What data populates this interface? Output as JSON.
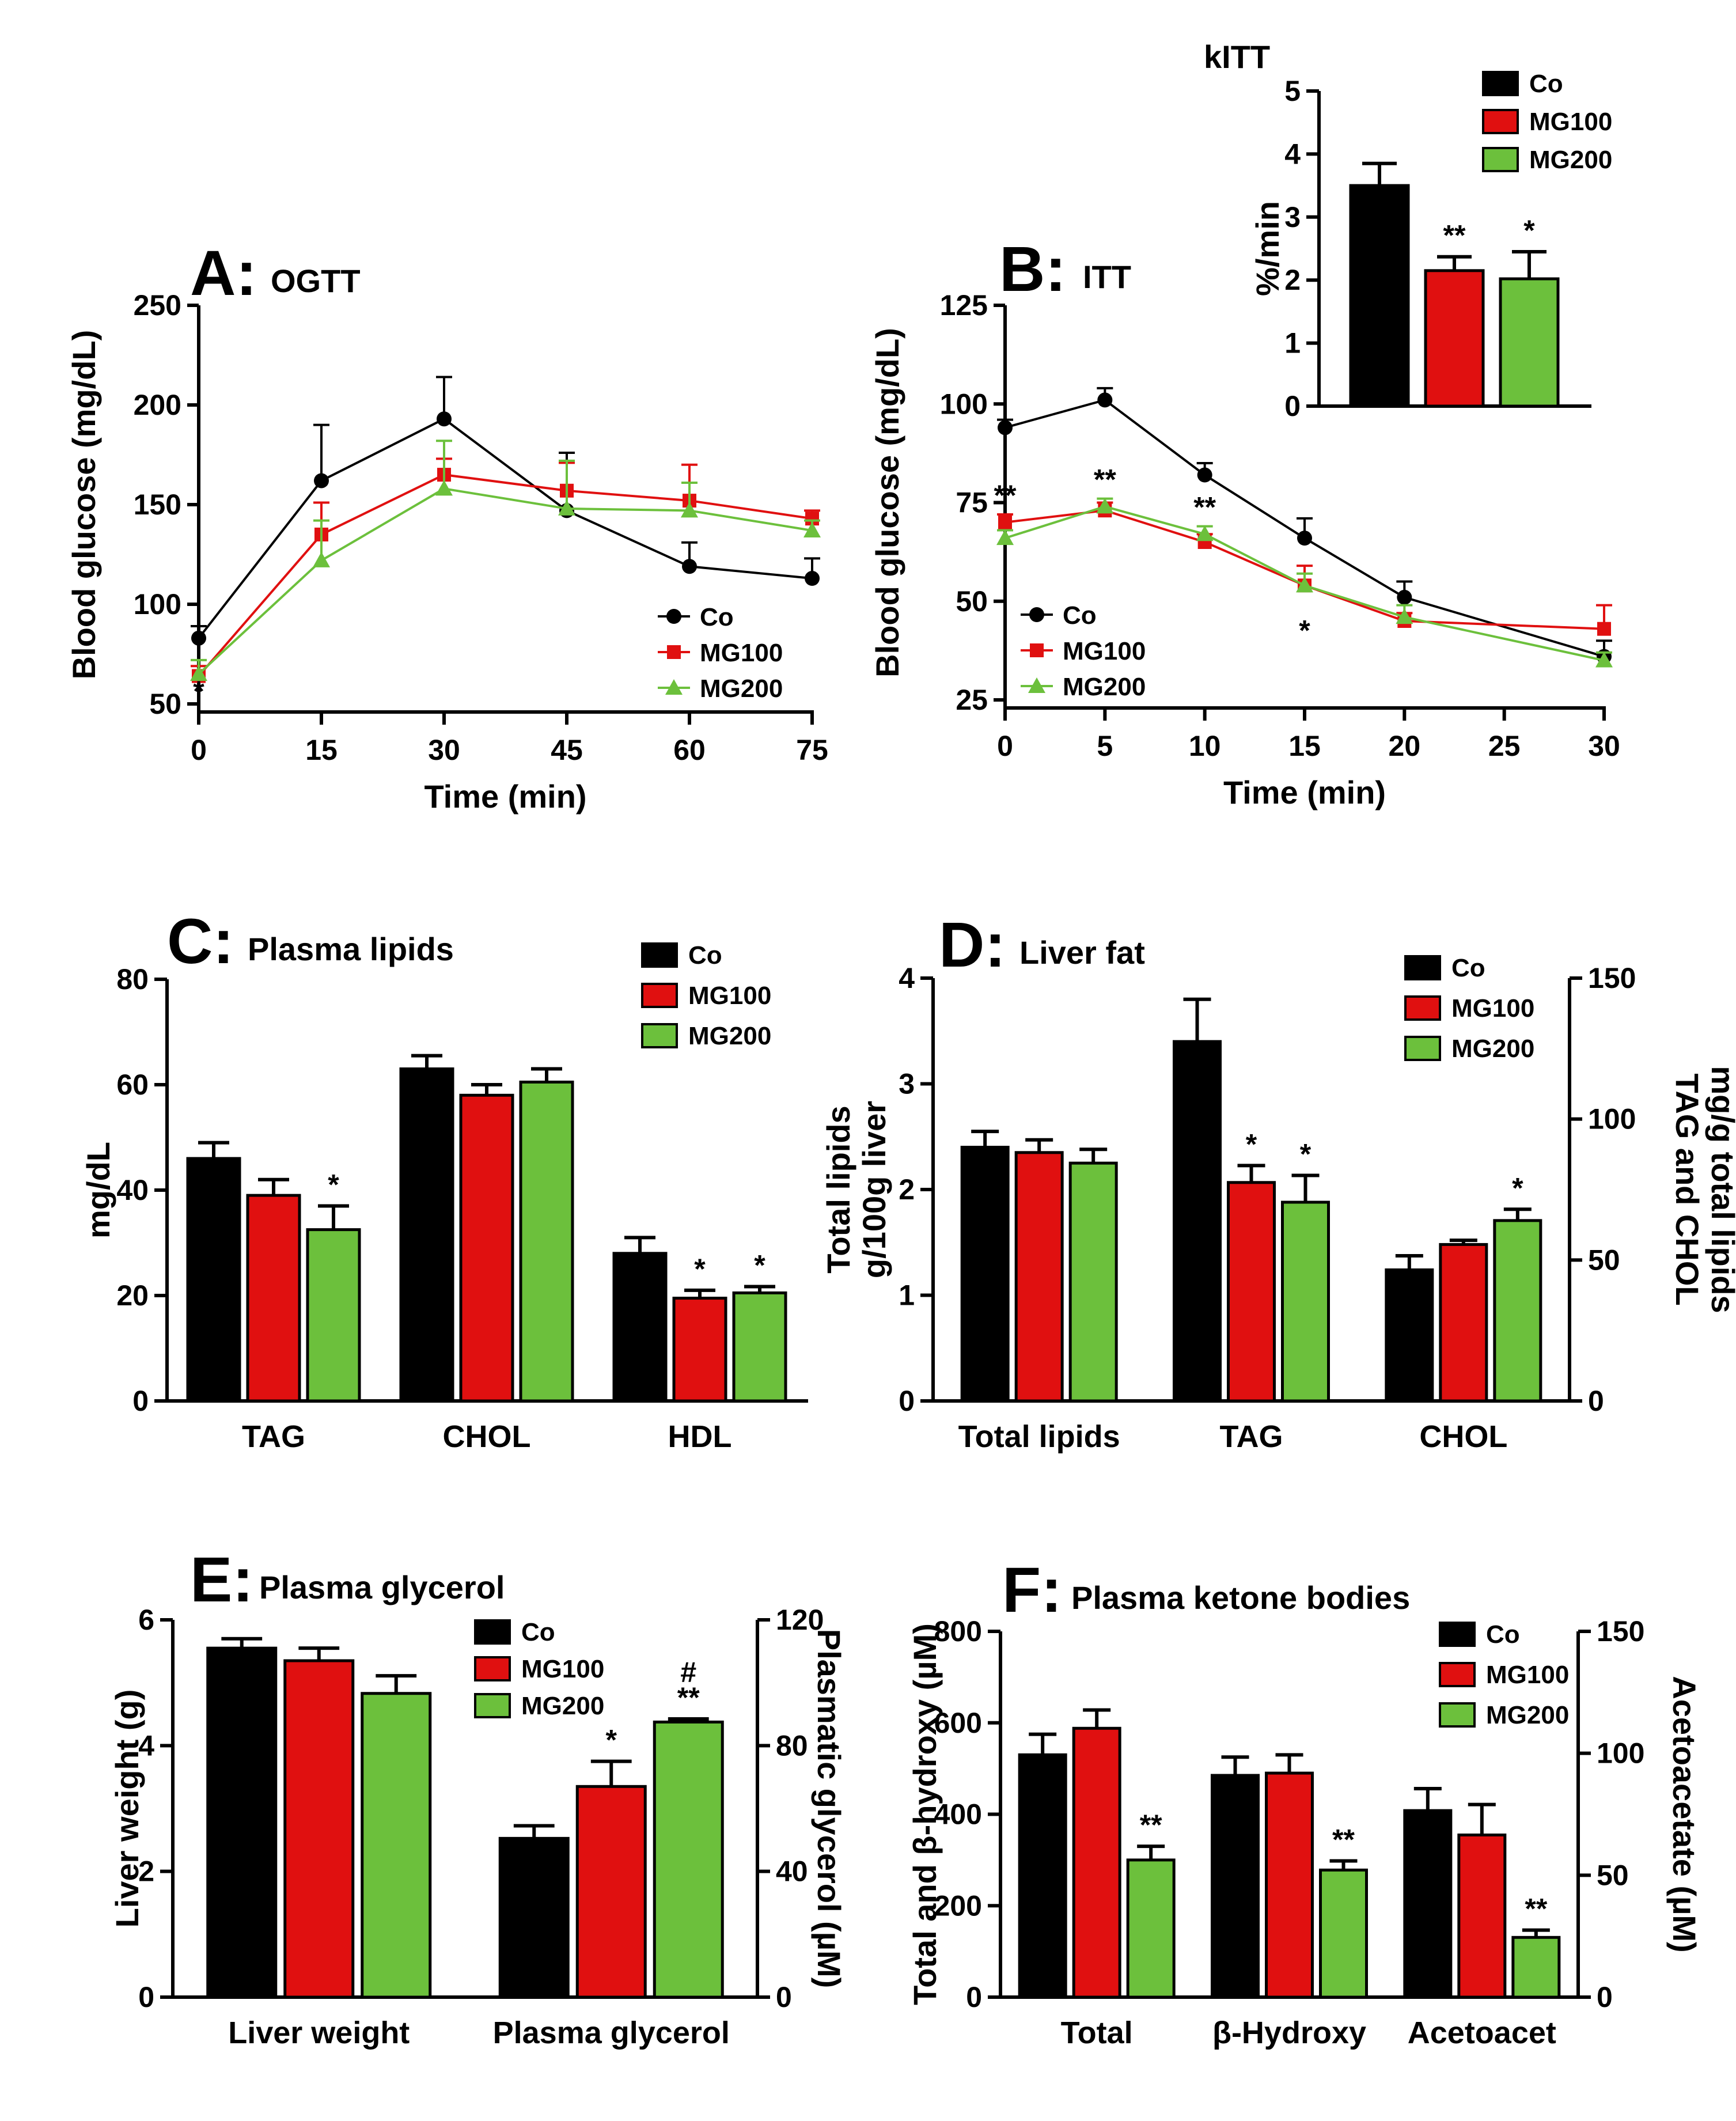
{
  "colors": {
    "co": "#000000",
    "mg100": "#e01010",
    "mg200": "#6cc03c"
  },
  "chart_data": [
    {
      "id": "A",
      "type": "line",
      "letter": "A:",
      "title": "OGTT",
      "xlabel": "Time (min)",
      "ylabel": "Blood glucose (mg/dL)",
      "x": [
        0,
        15,
        30,
        45,
        60,
        75
      ],
      "xlim": [
        0,
        75
      ],
      "ylim": [
        50,
        250
      ],
      "xticks": [
        "0",
        "15",
        "30",
        "45",
        "60",
        "75"
      ],
      "yticks": [
        "50",
        "100",
        "150",
        "200",
        "250"
      ],
      "series": [
        {
          "name": "Co",
          "key": "co",
          "marker": "circle",
          "values": [
            83,
            162,
            193,
            147,
            119,
            113
          ],
          "err": [
            6,
            28,
            21,
            29,
            12,
            10
          ]
        },
        {
          "name": "MG100",
          "key": "mg100",
          "marker": "square",
          "values": [
            64,
            135,
            165,
            157,
            152,
            143
          ],
          "err": [
            5,
            16,
            8,
            14,
            18,
            4
          ]
        },
        {
          "name": "MG200",
          "key": "mg200",
          "marker": "triangle",
          "values": [
            65,
            122,
            158,
            148,
            147,
            137
          ],
          "err": [
            7,
            20,
            24,
            24,
            14,
            5
          ]
        }
      ],
      "annotations": [
        {
          "x": 0,
          "y": 50,
          "text": "*",
          "series": "mg200"
        }
      ],
      "legend": [
        "Co",
        "MG100",
        "MG200"
      ]
    },
    {
      "id": "B",
      "type": "line",
      "letter": "B:",
      "title": "ITT",
      "xlabel": "Time (min)",
      "ylabel": "Blood glucose (mg/dL)",
      "x": [
        0,
        5,
        10,
        15,
        20,
        30
      ],
      "xlim": [
        0,
        30
      ],
      "ylim": [
        25,
        125
      ],
      "xticks": [
        "0",
        "5",
        "10",
        "15",
        "20",
        "25",
        "30"
      ],
      "yticks": [
        "25",
        "50",
        "75",
        "100",
        "125"
      ],
      "series": [
        {
          "name": "Co",
          "key": "co",
          "marker": "circle",
          "values": [
            94,
            101,
            82,
            66,
            51,
            36
          ],
          "err": [
            2,
            3,
            3,
            5,
            4,
            4
          ]
        },
        {
          "name": "MG100",
          "key": "mg100",
          "marker": "square",
          "values": [
            70,
            73,
            65,
            54,
            45,
            43
          ],
          "err": [
            2,
            2,
            2,
            5,
            2,
            6
          ]
        },
        {
          "name": "MG200",
          "key": "mg200",
          "marker": "triangle",
          "values": [
            66,
            74,
            67,
            54,
            46,
            35
          ],
          "err": [
            2,
            2,
            2,
            3,
            3,
            2
          ]
        }
      ],
      "annotations": [
        {
          "x": 0,
          "text": "**",
          "pos": "above"
        },
        {
          "x": 5,
          "text": "**",
          "pos": "above"
        },
        {
          "x": 10,
          "text": "**",
          "pos": "above"
        },
        {
          "x": 15,
          "text": "*",
          "pos": "below"
        }
      ],
      "legend": [
        "Co",
        "MG100",
        "MG200"
      ]
    },
    {
      "id": "inset",
      "type": "bar",
      "title": "kITT",
      "ylabel": "%/min",
      "categories": [
        ""
      ],
      "ylim": [
        0,
        5
      ],
      "yticks": [
        "0",
        "1",
        "2",
        "3",
        "4",
        "5"
      ],
      "series": [
        {
          "name": "Co",
          "key": "co",
          "values": [
            3.5
          ],
          "err": [
            0.35
          ],
          "sig": [
            ""
          ]
        },
        {
          "name": "MG100",
          "key": "mg100",
          "values": [
            2.15
          ],
          "err": [
            0.22
          ],
          "sig": [
            "**"
          ]
        },
        {
          "name": "MG200",
          "key": "mg200",
          "values": [
            2.02
          ],
          "err": [
            0.43
          ],
          "sig": [
            "*"
          ]
        }
      ],
      "legend": [
        "Co",
        "MG100",
        "MG200"
      ]
    },
    {
      "id": "C",
      "type": "bar",
      "letter": "C:",
      "title": "Plasma lipids",
      "ylabel": "mg/dL",
      "categories": [
        "TAG",
        "CHOL",
        "HDL"
      ],
      "ylim": [
        0,
        80
      ],
      "yticks": [
        "0",
        "20",
        "40",
        "60",
        "80"
      ],
      "series": [
        {
          "name": "Co",
          "key": "co",
          "values": [
            46,
            63,
            28
          ],
          "err": [
            3,
            2.5,
            3
          ],
          "sig": [
            "",
            "",
            ""
          ]
        },
        {
          "name": "MG100",
          "key": "mg100",
          "values": [
            39,
            58,
            19.5
          ],
          "err": [
            3,
            2,
            1.5
          ],
          "sig": [
            "",
            "",
            "*"
          ]
        },
        {
          "name": "MG200",
          "key": "mg200",
          "values": [
            32.5,
            60.5,
            20.5
          ],
          "err": [
            4.5,
            2.5,
            1.2
          ],
          "sig": [
            "*",
            "",
            "*"
          ]
        }
      ],
      "legend": [
        "Co",
        "MG100",
        "MG200"
      ]
    },
    {
      "id": "D",
      "type": "bar",
      "letter": "D:",
      "title": "Liver fat",
      "ylabel": "Total lipids g/100g liver",
      "ylabel_lines": [
        "Total lipids",
        "g/100g liver"
      ],
      "y2label": "TAG and CHOL mg/g total lipids",
      "y2label_lines": [
        "TAG and CHOL",
        "mg/g total lipids"
      ],
      "categories": [
        "Total lipids",
        "TAG",
        "CHOL"
      ],
      "ylim": [
        0,
        4
      ],
      "yticks": [
        "0",
        "1",
        "2",
        "3",
        "4"
      ],
      "y2lim": [
        0,
        150
      ],
      "y2ticks": [
        "0",
        "50",
        "100",
        "150"
      ],
      "axis_by_category": [
        "left",
        "right",
        "right"
      ],
      "series": [
        {
          "name": "Co",
          "key": "co",
          "values": [
            2.4,
            127.5,
            46.5
          ],
          "err": [
            0.15,
            15,
            5
          ],
          "sig": [
            "",
            "",
            ""
          ]
        },
        {
          "name": "MG100",
          "key": "mg100",
          "values": [
            2.35,
            77.5,
            55.5
          ],
          "err": [
            0.12,
            6,
            1.5
          ],
          "sig": [
            "",
            "*",
            ""
          ]
        },
        {
          "name": "MG200",
          "key": "mg200",
          "values": [
            2.25,
            70.5,
            64
          ],
          "err": [
            0.13,
            9.5,
            4
          ],
          "sig": [
            "",
            "*",
            "*"
          ]
        }
      ],
      "legend": [
        "Co",
        "MG100",
        "MG200"
      ]
    },
    {
      "id": "E",
      "type": "bar",
      "letter": "E:",
      "title": "Plasma glycerol",
      "ylabel": "Liver weight (g)",
      "y2label": "Plasmatic glycerol (µM)",
      "categories": [
        "Liver weight",
        "Plasma glycerol"
      ],
      "ylim": [
        0,
        6
      ],
      "yticks": [
        "0",
        "2",
        "4",
        "6"
      ],
      "y2lim": [
        0,
        120
      ],
      "y2ticks": [
        "0",
        "40",
        "80",
        "120"
      ],
      "axis_by_category": [
        "left",
        "right"
      ],
      "series": [
        {
          "name": "Co",
          "key": "co",
          "values": [
            5.55,
            50.5
          ],
          "err": [
            0.15,
            4
          ],
          "sig": [
            "",
            ""
          ]
        },
        {
          "name": "MG100",
          "key": "mg100",
          "values": [
            5.35,
            67
          ],
          "err": [
            0.2,
            8
          ],
          "sig": [
            "",
            "*"
          ]
        },
        {
          "name": "MG200",
          "key": "mg200",
          "values": [
            4.83,
            87.5
          ],
          "err": [
            0.28,
            1
          ],
          "sig": [
            "",
            "#\n**"
          ]
        }
      ],
      "legend": [
        "Co",
        "MG100",
        "MG200"
      ]
    },
    {
      "id": "F",
      "type": "bar",
      "letter": "F:",
      "title": "Plasma ketone bodies",
      "ylabel": "Total and β-hydroxy (µM)",
      "y2label": "Acetoacetate (µM)",
      "categories": [
        "Total",
        "β-Hydroxy",
        "Acetoacet"
      ],
      "ylim": [
        0,
        800
      ],
      "yticks": [
        "0",
        "200",
        "400",
        "600",
        "800"
      ],
      "y2lim": [
        0,
        150
      ],
      "y2ticks": [
        "0",
        "50",
        "100",
        "150"
      ],
      "axis_by_category": [
        "left",
        "left",
        "right"
      ],
      "series": [
        {
          "name": "Co",
          "key": "co",
          "values": [
            530,
            485,
            76.5
          ],
          "err": [
            45,
            40,
            9
          ],
          "sig": [
            "",
            "",
            ""
          ]
        },
        {
          "name": "MG100",
          "key": "mg100",
          "values": [
            588,
            490,
            66.5
          ],
          "err": [
            40,
            40,
            12.5
          ],
          "sig": [
            "",
            "",
            ""
          ]
        },
        {
          "name": "MG200",
          "key": "mg200",
          "values": [
            300,
            278,
            24.5
          ],
          "err": [
            30,
            20,
            3
          ],
          "sig": [
            "**",
            "**",
            "**"
          ]
        }
      ],
      "legend": [
        "Co",
        "MG100",
        "MG200"
      ]
    }
  ]
}
